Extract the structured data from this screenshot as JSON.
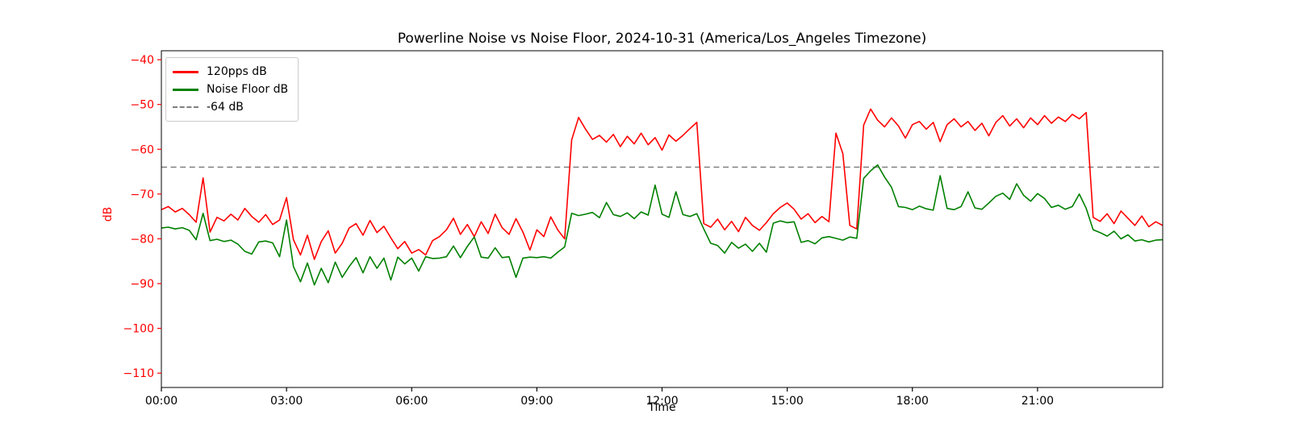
{
  "title": "Powerline Noise vs Noise Floor, 2024-10-31 (America/Los_Angeles Timezone)",
  "axes": {
    "xlabel": "Time",
    "ylabel": "dB",
    "x_tick_labels": [
      "00:00",
      "03:00",
      "06:00",
      "09:00",
      "12:00",
      "15:00",
      "18:00",
      "21:00"
    ],
    "x_tick_minutes": [
      0,
      180,
      360,
      540,
      720,
      900,
      1080,
      1260
    ],
    "xlim_minutes": [
      0,
      1440
    ],
    "y_tick_labels": [
      "−40",
      "−50",
      "−60",
      "−70",
      "−80",
      "−90",
      "−100",
      "−110"
    ],
    "y_tick_values": [
      -40,
      -50,
      -60,
      -70,
      -80,
      -90,
      -100,
      -110
    ],
    "ylim": [
      -113.2,
      -38.0
    ],
    "y_axis_color": "#ff0000",
    "x_axis_color": "#000000",
    "spine_color": "#000000",
    "grid": false
  },
  "legend": {
    "items": [
      {
        "label": "120pps dB",
        "color": "#ff0000",
        "style": "solid"
      },
      {
        "label": "Noise Floor dB",
        "color": "#008000",
        "style": "solid"
      },
      {
        "label": "-64 dB",
        "color": "#7f7f7f",
        "style": "dashed"
      }
    ]
  },
  "chart_data": {
    "type": "line",
    "title": "Powerline Noise vs Noise Floor, 2024-10-31 (America/Los_Angeles Timezone)",
    "xlabel": "Time",
    "ylabel": "dB",
    "x_unit": "minutes after 00:00 local (America/Los_Angeles), 2024-10-31",
    "x_start_minute": 0,
    "x_step_minutes": 10,
    "xlim_minutes": [
      0,
      1440
    ],
    "ylim": [
      -113.2,
      -38.0
    ],
    "grid": false,
    "legend_position": "upper left",
    "reference_line": {
      "name": "-64 dB",
      "value": -64,
      "color": "#7f7f7f",
      "style": "dashed"
    },
    "series": [
      {
        "name": "120pps dB",
        "color": "#ff0000",
        "values": [
          -73.5,
          -72.8,
          -74.0,
          -73.2,
          -74.6,
          -76.3,
          -66.4,
          -78.5,
          -75.2,
          -76.0,
          -74.5,
          -75.8,
          -73.2,
          -75.0,
          -76.3,
          -74.6,
          -76.8,
          -75.8,
          -70.8,
          -80.2,
          -83.6,
          -79.2,
          -84.6,
          -80.6,
          -78.2,
          -83.2,
          -81.0,
          -77.6,
          -76.6,
          -79.2,
          -75.9,
          -78.6,
          -77.2,
          -79.8,
          -82.2,
          -80.6,
          -83.2,
          -82.4,
          -83.6,
          -80.4,
          -79.5,
          -78.0,
          -75.4,
          -79.0,
          -76.8,
          -79.5,
          -76.2,
          -78.8,
          -74.5,
          -77.5,
          -79.0,
          -75.5,
          -78.5,
          -82.5,
          -78.0,
          -79.5,
          -75.1,
          -78.0,
          -80.0,
          -57.9,
          -52.9,
          -55.5,
          -57.8,
          -56.9,
          -58.4,
          -56.7,
          -59.4,
          -57.1,
          -58.8,
          -56.4,
          -59.0,
          -57.4,
          -60.2,
          -56.8,
          -58.2,
          -56.9,
          -55.4,
          -54.0,
          -76.6,
          -77.4,
          -75.6,
          -78.0,
          -76.1,
          -78.4,
          -75.2,
          -77.0,
          -78.1,
          -76.4,
          -74.4,
          -73.0,
          -72.0,
          -73.4,
          -75.6,
          -74.4,
          -76.4,
          -75.0,
          -76.2,
          -56.4,
          -61.0,
          -77.0,
          -77.8,
          -54.6,
          -51.0,
          -53.5,
          -55.0,
          -53.0,
          -54.8,
          -57.5,
          -54.5,
          -53.8,
          -55.5,
          -54.0,
          -58.3,
          -54.5,
          -53.2,
          -55.0,
          -53.8,
          -55.8,
          -54.2,
          -57.0,
          -54.0,
          -52.5,
          -54.8,
          -53.2,
          -55.2,
          -53.0,
          -54.5,
          -52.5,
          -54.2,
          -52.8,
          -53.8,
          -52.2,
          -53.2,
          -51.8,
          -75.2,
          -76.1,
          -74.4,
          -76.6,
          -73.8,
          -75.4,
          -77.0,
          -74.9,
          -77.3,
          -76.2,
          -77.0
        ]
      },
      {
        "name": "Noise Floor dB",
        "color": "#008000",
        "values": [
          -77.6,
          -77.4,
          -77.8,
          -77.5,
          -78.1,
          -80.2,
          -74.3,
          -80.4,
          -80.1,
          -80.6,
          -80.3,
          -81.2,
          -82.8,
          -83.4,
          -80.7,
          -80.5,
          -80.9,
          -84.0,
          -75.8,
          -86.2,
          -89.6,
          -85.4,
          -90.3,
          -86.6,
          -89.8,
          -85.2,
          -88.6,
          -86.2,
          -84.2,
          -87.6,
          -84.0,
          -86.6,
          -84.3,
          -89.2,
          -84.1,
          -85.6,
          -84.3,
          -87.2,
          -84.0,
          -84.4,
          -84.3,
          -84.0,
          -81.6,
          -84.2,
          -81.7,
          -79.6,
          -84.1,
          -84.3,
          -82.0,
          -84.2,
          -84.0,
          -88.6,
          -84.3,
          -84.1,
          -84.2,
          -84.0,
          -84.3,
          -83.0,
          -81.8,
          -74.3,
          -74.8,
          -74.5,
          -74.1,
          -75.3,
          -71.9,
          -74.6,
          -75.0,
          -74.2,
          -75.5,
          -74.0,
          -74.7,
          -68.0,
          -74.5,
          -75.2,
          -69.5,
          -74.6,
          -75.0,
          -74.4,
          -77.8,
          -81.0,
          -81.5,
          -83.2,
          -80.8,
          -82.1,
          -81.2,
          -82.8,
          -81.0,
          -83.0,
          -76.5,
          -76.0,
          -76.4,
          -76.2,
          -80.8,
          -80.4,
          -81.1,
          -79.8,
          -79.5,
          -79.9,
          -80.3,
          -79.6,
          -79.9,
          -66.5,
          -64.8,
          -63.5,
          -66.2,
          -68.5,
          -72.8,
          -73.0,
          -73.5,
          -72.7,
          -73.3,
          -73.6,
          -65.9,
          -73.2,
          -73.5,
          -72.8,
          -69.5,
          -73.1,
          -73.4,
          -72.0,
          -70.5,
          -69.8,
          -71.2,
          -67.7,
          -70.3,
          -71.6,
          -69.9,
          -71.0,
          -73.0,
          -72.5,
          -73.4,
          -72.8,
          -70.0,
          -73.2,
          -78.0,
          -78.6,
          -79.4,
          -78.3,
          -80.0,
          -79.1,
          -80.5,
          -80.2,
          -80.7,
          -80.3,
          -80.2
        ]
      }
    ]
  }
}
